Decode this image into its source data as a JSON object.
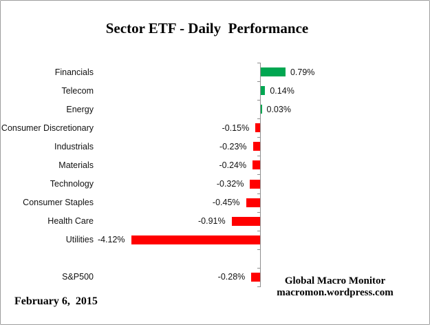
{
  "title": "Sector ETF - Daily  Performance",
  "footer": {
    "date": "February 6,  2015"
  },
  "attribution": {
    "line1": "Global Macro Monitor",
    "line2": "macromon.wordpress.com"
  },
  "colors": {
    "positive_bar": "#00A651",
    "negative_bar": "#FF0000",
    "axis": "#8E8E8E",
    "text": "#111111",
    "border": "#9D9D9D"
  },
  "chart_data": {
    "type": "bar",
    "orientation": "horizontal",
    "title": "Sector ETF - Daily  Performance",
    "categories": [
      "Financials",
      "Telecom",
      "Energy",
      "Consumer Discretionary",
      "Industrials",
      "Materials",
      "Technology",
      "Consumer Staples",
      "Health Care",
      "Utilities",
      "",
      "S&P500"
    ],
    "values": [
      0.79,
      0.14,
      0.03,
      -0.15,
      -0.23,
      -0.24,
      -0.32,
      -0.45,
      -0.91,
      -4.12,
      null,
      -0.28
    ],
    "value_labels": [
      "0.79%",
      "0.14%",
      "0.03%",
      "-0.15%",
      "-0.23%",
      "-0.24%",
      "-0.32%",
      "-0.45%",
      "-0.91%",
      "-4.12%",
      "",
      "-0.28%"
    ],
    "units": "%",
    "xlabel": "",
    "ylabel": "",
    "baseline": 0,
    "gridlines": false,
    "legend": false,
    "positive_color": "#00A651",
    "negative_color": "#FF0000"
  }
}
